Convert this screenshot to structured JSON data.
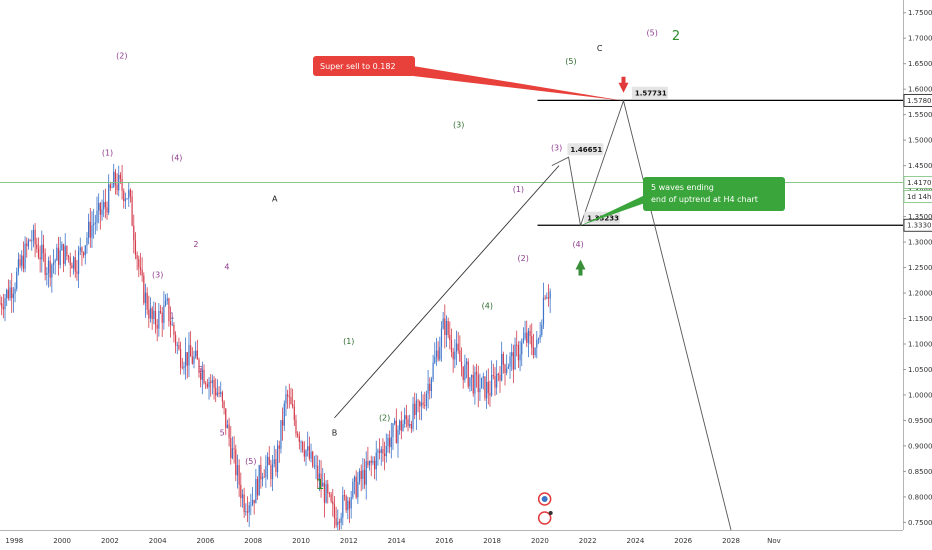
{
  "chart_data": {
    "type": "candlestick",
    "x_tick_labels": [
      "1998",
      "2000",
      "2002",
      "2004",
      "2006",
      "2008",
      "2010",
      "2012",
      "2014",
      "2016",
      "2018",
      "2020",
      "2022",
      "2024",
      "2026",
      "2028",
      "Nov"
    ],
    "y_tick_labels": [
      "1.75000",
      "1.70000",
      "1.65000",
      "1.60000",
      "1.55000",
      "1.50000",
      "1.45000",
      "1.40000",
      "1.35000",
      "1.30000",
      "1.25000",
      "1.20000",
      "1.15000",
      "1.10000",
      "1.05000",
      "1.00000",
      "0.95000",
      "0.90000",
      "0.85000",
      "0.80000",
      "0.75000"
    ],
    "ylim": [
      0.735,
      1.775
    ],
    "xlim": [
      1997.4,
      2035.2
    ],
    "price_path": [
      [
        1997.4,
        1.18
      ],
      [
        1998.0,
        1.22
      ],
      [
        1998.7,
        1.31
      ],
      [
        1999.4,
        1.25
      ],
      [
        2000.0,
        1.28
      ],
      [
        2000.6,
        1.26
      ],
      [
        2001.2,
        1.33
      ],
      [
        2001.8,
        1.37
      ],
      [
        2002.2,
        1.42
      ],
      [
        2002.8,
        1.39
      ],
      [
        2003.3,
        1.22
      ],
      [
        2003.8,
        1.14
      ],
      [
        2004.4,
        1.17
      ],
      [
        2004.9,
        1.08
      ],
      [
        2005.5,
        1.07
      ],
      [
        2006.0,
        1.04
      ],
      [
        2006.6,
        1.0
      ],
      [
        2007.2,
        0.87
      ],
      [
        2007.6,
        0.79
      ],
      [
        2008.0,
        0.8
      ],
      [
        2008.4,
        0.86
      ],
      [
        2008.9,
        0.85
      ],
      [
        2009.4,
        1.0
      ],
      [
        2009.8,
        0.94
      ],
      [
        2010.3,
        0.88
      ],
      [
        2010.8,
        0.83
      ],
      [
        2011.4,
        0.76
      ],
      [
        2012.0,
        0.8
      ],
      [
        2012.6,
        0.84
      ],
      [
        2013.2,
        0.88
      ],
      [
        2013.8,
        0.92
      ],
      [
        2014.4,
        0.95
      ],
      [
        2015.0,
        0.97
      ],
      [
        2015.5,
        1.05
      ],
      [
        2016.0,
        1.14
      ],
      [
        2016.4,
        1.09
      ],
      [
        2016.8,
        1.05
      ],
      [
        2017.3,
        1.02
      ],
      [
        2017.9,
        1.01
      ],
      [
        2018.4,
        1.06
      ],
      [
        2018.9,
        1.07
      ],
      [
        2019.4,
        1.11
      ],
      [
        2019.9,
        1.09
      ],
      [
        2020.2,
        1.21
      ],
      [
        2020.5,
        1.2
      ]
    ],
    "projection": [
      [
        2020.5,
        1.45
      ],
      [
        2021.2,
        1.46651
      ],
      [
        2021.7,
        1.33233
      ],
      [
        2023.5,
        1.57731
      ],
      [
        2028.0,
        0.735
      ]
    ],
    "trendline": [
      [
        2011.4,
        0.955
      ],
      [
        2020.8,
        1.45
      ]
    ],
    "horizontal_levels": [
      {
        "label": "1.57802",
        "value": 1.57802,
        "color": "#000000"
      },
      {
        "label": "1.41703",
        "value": 1.41703,
        "color": "#7ac17a"
      },
      {
        "label": "1.33302",
        "value": 1.33302,
        "color": "#000000"
      }
    ],
    "price_boxes": [
      {
        "text": "1.57731",
        "x": 2023.6,
        "y": 1.57731
      },
      {
        "text": "1.46651",
        "x": 2020.9,
        "y": 1.46651
      },
      {
        "text": "1.33233",
        "x": 2021.6,
        "y": 1.33233
      }
    ],
    "wave_labels": [
      {
        "text": "(2)",
        "x": 2002.5,
        "y": 1.66,
        "color": "#8e3c8e"
      },
      {
        "text": "(1)",
        "x": 2001.9,
        "y": 1.47,
        "color": "#8e3c8e"
      },
      {
        "text": "(4)",
        "x": 2004.8,
        "y": 1.46,
        "color": "#8e3c8e"
      },
      {
        "text": "2",
        "x": 2005.6,
        "y": 1.29,
        "color": "#8e3c8e"
      },
      {
        "text": "4",
        "x": 2006.9,
        "y": 1.246,
        "color": "#8e3c8e"
      },
      {
        "text": "(3)",
        "x": 2004.0,
        "y": 1.23,
        "color": "#8e3c8e"
      },
      {
        "text": "1",
        "x": 2004.6,
        "y": 1.15,
        "color": "#8e3c8e"
      },
      {
        "text": "3",
        "x": 2005.8,
        "y": 1.045,
        "color": "#8e3c8e"
      },
      {
        "text": "5",
        "x": 2006.7,
        "y": 0.92,
        "color": "#8e3c8e"
      },
      {
        "text": "(5)",
        "x": 2007.9,
        "y": 0.865,
        "color": "#8e3c8e"
      },
      {
        "text": "A",
        "x": 2008.9,
        "y": 1.38,
        "color": "#222222"
      },
      {
        "text": "B",
        "x": 2011.4,
        "y": 0.92,
        "color": "#222222"
      },
      {
        "text": "C",
        "x": 2022.5,
        "y": 1.675,
        "color": "#222222"
      },
      {
        "text": "(1)",
        "x": 2012.0,
        "y": 1.1,
        "color": "#2e6b2e"
      },
      {
        "text": "(2)",
        "x": 2013.5,
        "y": 0.95,
        "color": "#2e6b2e"
      },
      {
        "text": "(3)",
        "x": 2016.6,
        "y": 1.525,
        "color": "#2e6b2e"
      },
      {
        "text": "(4)",
        "x": 2017.8,
        "y": 1.17,
        "color": "#2e6b2e"
      },
      {
        "text": "(5)",
        "x": 2021.3,
        "y": 1.649,
        "color": "#2e6b2e"
      },
      {
        "text": "(1)",
        "x": 2019.1,
        "y": 1.398,
        "color": "#8e3c8e"
      },
      {
        "text": "(2)",
        "x": 2019.3,
        "y": 1.263,
        "color": "#8e3c8e"
      },
      {
        "text": "(3)",
        "x": 2020.7,
        "y": 1.48,
        "color": "#8e3c8e"
      },
      {
        "text": "(4)",
        "x": 2021.6,
        "y": 1.29,
        "color": "#8e3c8e"
      },
      {
        "text": "(5)",
        "x": 2024.7,
        "y": 1.705,
        "color": "#8e3c8e"
      },
      {
        "text": "1",
        "x": 2010.8,
        "y": 0.815,
        "color": "#2e8b2e",
        "big": true
      },
      {
        "text": "2",
        "x": 2025.7,
        "y": 1.697,
        "color": "#2e8b2e",
        "big": true
      }
    ],
    "callouts": [
      {
        "lines": [
          "Super sell to 0.182"
        ],
        "color": "#e8403a"
      },
      {
        "lines": [
          "5 waves ending",
          "end of uptrend at H4 chart"
        ],
        "color": "#3aa53a"
      }
    ],
    "axis_badge": "1d 14h"
  }
}
